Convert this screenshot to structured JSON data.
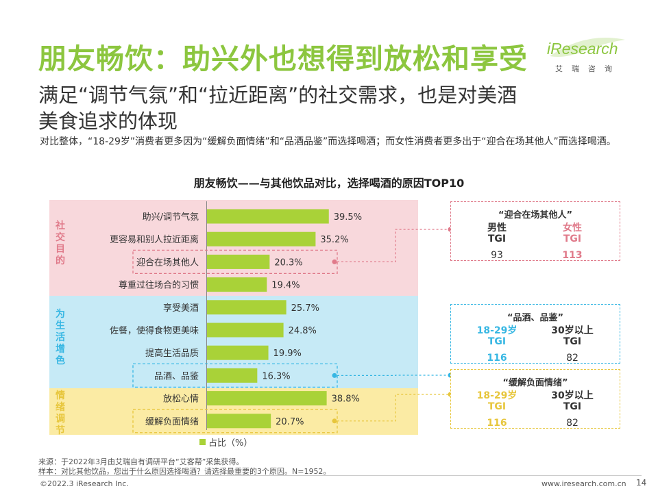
{
  "header": {
    "title": "朋友畅饮：助兴外也想得到放松和享受",
    "subtitle_line1": "满足“调节气氛”和“拉近距离”的社交需求，也是对美酒",
    "subtitle_line2": "美食追求的体现",
    "description": "对比整体，“18-29岁”消费者更多因为“缓解负面情绪”和“品酒品鉴”而选择喝酒；而女性消费者更多出于“迎合在场其他人”而选择喝酒。"
  },
  "logo": {
    "text": "iResearch",
    "subtext": "艾瑞咨询"
  },
  "colors": {
    "brand_green": "#8cc63f",
    "bar": "#a9d238",
    "pink": "#e07a8a",
    "blue": "#37b7e3",
    "yellow": "#e7c63c"
  },
  "chart_data": {
    "type": "bar",
    "orientation": "horizontal",
    "title": "朋友畅饮——与其他饮品对比，选择喝酒的原因TOP10",
    "categories": [
      "助兴/调节气氛",
      "更容易和别人拉近距离",
      "迎合在场其他人",
      "尊重过往场合的习惯",
      "享受美酒",
      "佐餐，使得食物更美味",
      "提高生活品质",
      "品酒、品鉴",
      "放松心情",
      "缓解负面情绪"
    ],
    "values": [
      39.5,
      35.2,
      20.3,
      19.4,
      25.7,
      24.8,
      19.9,
      16.3,
      38.8,
      20.7
    ],
    "value_labels": [
      "39.5%",
      "35.2%",
      "20.3%",
      "19.4%",
      "25.7%",
      "24.8%",
      "19.9%",
      "16.3%",
      "38.8%",
      "20.7%"
    ],
    "groups": [
      {
        "name": "社交目的",
        "items": [
          0,
          1,
          2,
          3
        ]
      },
      {
        "name": "为生活增色",
        "items": [
          4,
          5,
          6,
          7
        ]
      },
      {
        "name": "情绪调节",
        "items": [
          8,
          9
        ]
      }
    ],
    "xlim": [
      0,
      45
    ],
    "legend": "占比（%）",
    "legend_position": "bottom",
    "highlighted": [
      2,
      7,
      9
    ]
  },
  "callouts": [
    {
      "title": "“迎合在场其他人”",
      "col1_head": "男性",
      "col1_sub": "TGI",
      "col1_val": "93",
      "col2_head": "女性",
      "col2_sub": "TGI",
      "col2_val": "113"
    },
    {
      "title": "“品酒、品鉴”",
      "col1_head": "18-29岁",
      "col1_sub": "TGI",
      "col1_val": "116",
      "col2_head": "30岁以上",
      "col2_sub": "TGI",
      "col2_val": "82"
    },
    {
      "title": "“缓解负面情绪”",
      "col1_head": "18-29岁",
      "col1_sub": "TGI",
      "col1_val": "116",
      "col2_head": "30岁以上",
      "col2_sub": "TGI",
      "col2_val": "82"
    }
  ],
  "notes": {
    "source": "来源：于2022年3月由艾瑞自有调研平台“艾客帮”采集获得。",
    "sample": "样本：对比其他饮品，您出于什么原因选择喝酒？请选择最重要的3个原因。N=1952。"
  },
  "footer": {
    "copyright": "©2022.3 iResearch Inc.",
    "website": "www.iresearch.com.cn",
    "page": "14"
  }
}
